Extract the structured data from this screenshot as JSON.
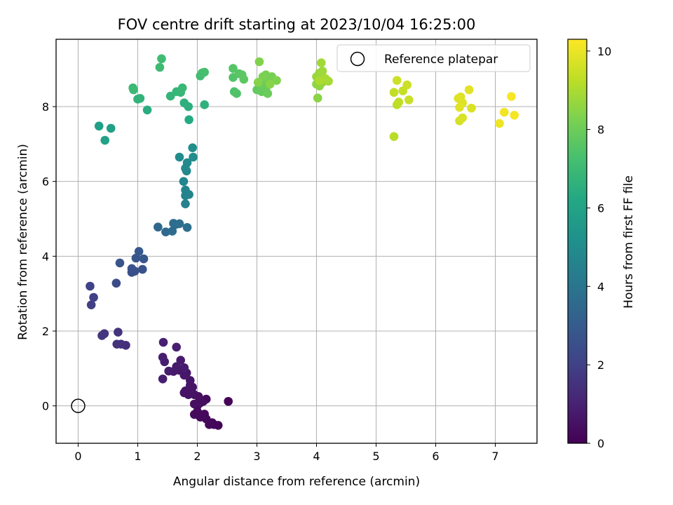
{
  "chart_data": {
    "type": "scatter",
    "title": "FOV centre drift starting at 2023/10/04 16:25:00",
    "xlabel": "Angular distance from reference (arcmin)",
    "ylabel": "Rotation from reference (arcmin)",
    "xlim": [
      -0.37,
      7.7
    ],
    "ylim": [
      -1.0,
      9.8
    ],
    "x_ticks": [
      0,
      1,
      2,
      3,
      4,
      5,
      6,
      7
    ],
    "y_ticks": [
      0,
      2,
      4,
      6,
      8
    ],
    "grid": true,
    "legend": {
      "placement": "top-right",
      "entries": [
        "Reference platepar"
      ]
    },
    "reference_point": {
      "x": 0,
      "y": 0
    },
    "colorbar": {
      "label": "Hours from first FF file",
      "colormap": "viridis",
      "range": [
        0,
        10.3
      ],
      "ticks": [
        0,
        2,
        4,
        6,
        8,
        10
      ]
    },
    "points": [
      {
        "x": 2.52,
        "y": 0.12,
        "c": 0.05
      },
      {
        "x": 2.35,
        "y": -0.52,
        "c": 0.1
      },
      {
        "x": 2.28,
        "y": -0.5,
        "c": 0.12
      },
      {
        "x": 2.25,
        "y": -0.45,
        "c": 0.15
      },
      {
        "x": 2.2,
        "y": -0.5,
        "c": 0.18
      },
      {
        "x": 2.15,
        "y": -0.35,
        "c": 0.2
      },
      {
        "x": 2.12,
        "y": -0.22,
        "c": 0.22
      },
      {
        "x": 2.05,
        "y": -0.3,
        "c": 0.25
      },
      {
        "x": 1.98,
        "y": -0.22,
        "c": 0.28
      },
      {
        "x": 2.15,
        "y": 0.18,
        "c": 0.3
      },
      {
        "x": 2.1,
        "y": 0.12,
        "c": 0.32
      },
      {
        "x": 2.05,
        "y": 0.08,
        "c": 0.35
      },
      {
        "x": 2.0,
        "y": 0.0,
        "c": 0.38
      },
      {
        "x": 1.95,
        "y": 0.05,
        "c": 0.4
      },
      {
        "x": 2.02,
        "y": 0.25,
        "c": 0.42
      },
      {
        "x": 1.95,
        "y": 0.3,
        "c": 0.45
      },
      {
        "x": 1.9,
        "y": 0.35,
        "c": 0.48
      },
      {
        "x": 1.85,
        "y": 0.3,
        "c": 0.5
      },
      {
        "x": 1.78,
        "y": 0.35,
        "c": 0.52
      },
      {
        "x": 1.8,
        "y": 0.4,
        "c": 0.55
      },
      {
        "x": 1.92,
        "y": 0.5,
        "c": 0.58
      },
      {
        "x": 1.88,
        "y": 0.55,
        "c": 0.6
      },
      {
        "x": 1.88,
        "y": 0.68,
        "c": 0.62
      },
      {
        "x": 1.82,
        "y": 0.88,
        "c": 0.65
      },
      {
        "x": 1.78,
        "y": 0.82,
        "c": 0.68
      },
      {
        "x": 1.7,
        "y": 0.95,
        "c": 0.7
      },
      {
        "x": 1.65,
        "y": 1.05,
        "c": 0.72
      },
      {
        "x": 1.6,
        "y": 0.92,
        "c": 0.75
      },
      {
        "x": 1.72,
        "y": 1.22,
        "c": 0.78
      },
      {
        "x": 1.78,
        "y": 1.02,
        "c": 0.8
      },
      {
        "x": 1.52,
        "y": 0.93,
        "c": 0.82
      },
      {
        "x": 1.42,
        "y": 1.3,
        "c": 0.85
      },
      {
        "x": 1.45,
        "y": 1.18,
        "c": 0.88
      },
      {
        "x": 1.42,
        "y": 0.72,
        "c": 0.9
      },
      {
        "x": 1.65,
        "y": 1.57,
        "c": 0.92
      },
      {
        "x": 1.43,
        "y": 1.7,
        "c": 0.95
      },
      {
        "x": 1.95,
        "y": -0.23,
        "c": 0.3
      },
      {
        "x": 2.0,
        "y": -0.15,
        "c": 0.27
      },
      {
        "x": 0.8,
        "y": 1.62,
        "c": 1.4
      },
      {
        "x": 0.72,
        "y": 1.65,
        "c": 1.45
      },
      {
        "x": 0.65,
        "y": 1.65,
        "c": 1.5
      },
      {
        "x": 0.67,
        "y": 1.97,
        "c": 1.55
      },
      {
        "x": 0.44,
        "y": 1.93,
        "c": 1.6
      },
      {
        "x": 0.4,
        "y": 1.88,
        "c": 1.65
      },
      {
        "x": 0.22,
        "y": 2.7,
        "c": 1.95
      },
      {
        "x": 0.26,
        "y": 2.9,
        "c": 2.0
      },
      {
        "x": 0.2,
        "y": 3.2,
        "c": 2.05
      },
      {
        "x": 0.64,
        "y": 3.28,
        "c": 2.4
      },
      {
        "x": 0.9,
        "y": 3.57,
        "c": 2.5
      },
      {
        "x": 0.95,
        "y": 3.6,
        "c": 2.55
      },
      {
        "x": 0.9,
        "y": 3.67,
        "c": 2.6
      },
      {
        "x": 1.08,
        "y": 3.65,
        "c": 2.65
      },
      {
        "x": 0.7,
        "y": 3.82,
        "c": 2.7
      },
      {
        "x": 0.97,
        "y": 3.95,
        "c": 2.75
      },
      {
        "x": 1.1,
        "y": 3.93,
        "c": 2.8
      },
      {
        "x": 1.02,
        "y": 4.13,
        "c": 2.85
      },
      {
        "x": 1.34,
        "y": 4.78,
        "c": 3.5
      },
      {
        "x": 1.47,
        "y": 4.65,
        "c": 3.55
      },
      {
        "x": 1.58,
        "y": 4.67,
        "c": 3.6
      },
      {
        "x": 1.6,
        "y": 4.88,
        "c": 3.65
      },
      {
        "x": 1.64,
        "y": 4.85,
        "c": 3.7
      },
      {
        "x": 1.7,
        "y": 4.87,
        "c": 3.75
      },
      {
        "x": 1.83,
        "y": 4.77,
        "c": 3.8
      },
      {
        "x": 1.8,
        "y": 5.4,
        "c": 4.5
      },
      {
        "x": 1.8,
        "y": 5.62,
        "c": 4.55
      },
      {
        "x": 1.86,
        "y": 5.65,
        "c": 4.6
      },
      {
        "x": 1.8,
        "y": 5.77,
        "c": 4.65
      },
      {
        "x": 1.77,
        "y": 6.0,
        "c": 4.7
      },
      {
        "x": 1.82,
        "y": 6.28,
        "c": 4.8
      },
      {
        "x": 1.8,
        "y": 6.35,
        "c": 4.85
      },
      {
        "x": 1.83,
        "y": 6.5,
        "c": 4.9
      },
      {
        "x": 1.7,
        "y": 6.65,
        "c": 4.95
      },
      {
        "x": 1.93,
        "y": 6.65,
        "c": 5.0
      },
      {
        "x": 1.92,
        "y": 6.9,
        "c": 5.05
      },
      {
        "x": 0.35,
        "y": 7.48,
        "c": 5.8
      },
      {
        "x": 0.55,
        "y": 7.42,
        "c": 5.85
      },
      {
        "x": 0.45,
        "y": 7.1,
        "c": 5.9
      },
      {
        "x": 1.86,
        "y": 7.65,
        "c": 6.3
      },
      {
        "x": 1.16,
        "y": 7.91,
        "c": 6.4
      },
      {
        "x": 1.85,
        "y": 8.0,
        "c": 6.5
      },
      {
        "x": 1.78,
        "y": 8.1,
        "c": 6.55
      },
      {
        "x": 2.12,
        "y": 8.05,
        "c": 6.6
      },
      {
        "x": 1.0,
        "y": 8.2,
        "c": 6.65
      },
      {
        "x": 1.04,
        "y": 8.22,
        "c": 6.7
      },
      {
        "x": 1.55,
        "y": 8.28,
        "c": 6.75
      },
      {
        "x": 1.65,
        "y": 8.4,
        "c": 6.8
      },
      {
        "x": 1.72,
        "y": 8.38,
        "c": 6.85
      },
      {
        "x": 1.75,
        "y": 8.5,
        "c": 6.9
      },
      {
        "x": 0.92,
        "y": 8.5,
        "c": 6.95
      },
      {
        "x": 0.93,
        "y": 8.45,
        "c": 7.0
      },
      {
        "x": 1.37,
        "y": 9.05,
        "c": 7.05
      },
      {
        "x": 1.4,
        "y": 9.28,
        "c": 7.1
      },
      {
        "x": 2.05,
        "y": 8.82,
        "c": 7.15
      },
      {
        "x": 2.08,
        "y": 8.9,
        "c": 7.2
      },
      {
        "x": 2.12,
        "y": 8.92,
        "c": 7.25
      },
      {
        "x": 2.62,
        "y": 8.4,
        "c": 7.4
      },
      {
        "x": 2.66,
        "y": 8.35,
        "c": 7.45
      },
      {
        "x": 2.6,
        "y": 8.78,
        "c": 7.5
      },
      {
        "x": 2.6,
        "y": 9.02,
        "c": 7.55
      },
      {
        "x": 2.7,
        "y": 8.88,
        "c": 7.6
      },
      {
        "x": 2.75,
        "y": 8.85,
        "c": 7.65
      },
      {
        "x": 2.78,
        "y": 8.73,
        "c": 7.7
      },
      {
        "x": 3.0,
        "y": 8.45,
        "c": 7.8
      },
      {
        "x": 3.08,
        "y": 8.4,
        "c": 7.85
      },
      {
        "x": 3.15,
        "y": 8.5,
        "c": 7.9
      },
      {
        "x": 3.18,
        "y": 8.35,
        "c": 7.95
      },
      {
        "x": 3.05,
        "y": 8.62,
        "c": 8.0
      },
      {
        "x": 3.12,
        "y": 8.7,
        "c": 8.05
      },
      {
        "x": 3.2,
        "y": 8.72,
        "c": 8.1
      },
      {
        "x": 3.25,
        "y": 8.8,
        "c": 8.15
      },
      {
        "x": 3.15,
        "y": 8.85,
        "c": 8.2
      },
      {
        "x": 3.1,
        "y": 8.8,
        "c": 8.25
      },
      {
        "x": 3.33,
        "y": 8.7,
        "c": 8.3
      },
      {
        "x": 3.04,
        "y": 9.2,
        "c": 8.35
      },
      {
        "x": 3.02,
        "y": 8.65,
        "c": 8.4
      },
      {
        "x": 3.22,
        "y": 8.6,
        "c": 8.45
      },
      {
        "x": 4.02,
        "y": 8.23,
        "c": 8.5
      },
      {
        "x": 4.0,
        "y": 8.6,
        "c": 8.55
      },
      {
        "x": 4.05,
        "y": 8.55,
        "c": 8.6
      },
      {
        "x": 4.1,
        "y": 8.65,
        "c": 8.65
      },
      {
        "x": 4.0,
        "y": 8.8,
        "c": 8.7
      },
      {
        "x": 4.05,
        "y": 8.9,
        "c": 8.75
      },
      {
        "x": 4.1,
        "y": 8.95,
        "c": 8.8
      },
      {
        "x": 4.08,
        "y": 9.17,
        "c": 8.85
      },
      {
        "x": 4.2,
        "y": 8.68,
        "c": 8.9
      },
      {
        "x": 4.15,
        "y": 8.75,
        "c": 8.95
      },
      {
        "x": 4.05,
        "y": 8.7,
        "c": 9.0
      },
      {
        "x": 5.3,
        "y": 7.2,
        "c": 9.2
      },
      {
        "x": 5.35,
        "y": 8.05,
        "c": 9.25
      },
      {
        "x": 5.38,
        "y": 8.12,
        "c": 9.3
      },
      {
        "x": 5.3,
        "y": 8.38,
        "c": 9.35
      },
      {
        "x": 5.45,
        "y": 8.42,
        "c": 9.4
      },
      {
        "x": 5.55,
        "y": 8.18,
        "c": 9.45
      },
      {
        "x": 5.52,
        "y": 8.58,
        "c": 9.5
      },
      {
        "x": 5.35,
        "y": 8.7,
        "c": 9.55
      },
      {
        "x": 6.4,
        "y": 7.62,
        "c": 9.65
      },
      {
        "x": 6.45,
        "y": 7.7,
        "c": 9.7
      },
      {
        "x": 6.6,
        "y": 7.96,
        "c": 9.75
      },
      {
        "x": 6.38,
        "y": 8.22,
        "c": 9.78
      },
      {
        "x": 6.42,
        "y": 8.26,
        "c": 9.8
      },
      {
        "x": 6.45,
        "y": 8.1,
        "c": 9.82
      },
      {
        "x": 6.4,
        "y": 7.98,
        "c": 9.85
      },
      {
        "x": 6.56,
        "y": 8.45,
        "c": 9.88
      },
      {
        "x": 7.07,
        "y": 7.55,
        "c": 10.05
      },
      {
        "x": 7.15,
        "y": 7.85,
        "c": 10.1
      },
      {
        "x": 7.32,
        "y": 7.77,
        "c": 10.15
      },
      {
        "x": 7.27,
        "y": 8.27,
        "c": 10.2
      }
    ]
  }
}
